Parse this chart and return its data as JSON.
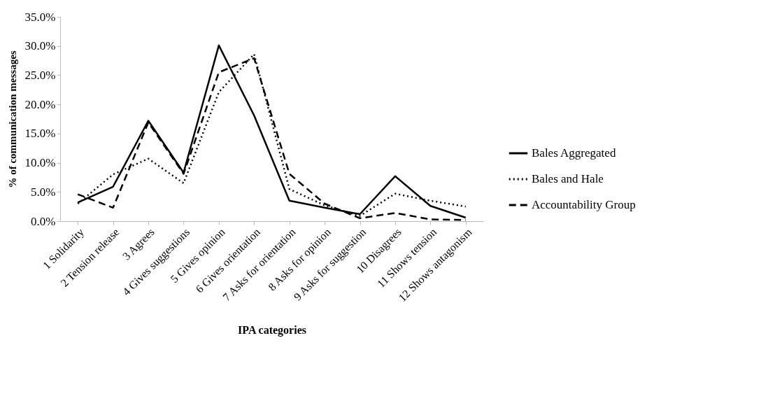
{
  "chart_data": {
    "type": "line",
    "xlabel": "IPA categories",
    "ylabel": "% of communication messages",
    "categories": [
      "1 Solidarity",
      "2 Tension release",
      "3 Agrees",
      "4 Gives suggestions",
      "5 Gives opinion",
      "6 Gives orientation",
      "7 Asks for orientation",
      "8 Asks for opinion",
      "9 Asks for suggestion",
      "10 Disagrees",
      "11 Shows tension",
      "12 Shows antagonism"
    ],
    "series": [
      {
        "name": "Bales Aggregated",
        "color": "#000000",
        "line_style": "solid",
        "values": [
          3.2,
          5.9,
          17.2,
          8.3,
          30.1,
          18.1,
          3.5,
          2.3,
          1.2,
          7.7,
          2.6,
          0.6
        ]
      },
      {
        "name": "Bales and Hale",
        "color": "#000000",
        "line_style": "dotted",
        "values": [
          3.0,
          8.0,
          10.7,
          6.5,
          22.1,
          28.6,
          5.5,
          2.7,
          0.9,
          4.7,
          3.5,
          2.5
        ]
      },
      {
        "name": "Accountability Group",
        "color": "#000000",
        "line_style": "dashed",
        "values": [
          4.6,
          2.3,
          16.9,
          8.1,
          25.5,
          27.9,
          8.1,
          3.0,
          0.5,
          1.4,
          0.3,
          0.2
        ]
      }
    ],
    "ylim": [
      0,
      35
    ],
    "yticks": [
      {
        "value": 0,
        "label": "0.0%"
      },
      {
        "value": 5,
        "label": "5.0%"
      },
      {
        "value": 10,
        "label": "10.0%"
      },
      {
        "value": 15,
        "label": "15.0%"
      },
      {
        "value": 20,
        "label": "20.0%"
      },
      {
        "value": 25,
        "label": "25.0%"
      },
      {
        "value": 30,
        "label": "30.0%"
      },
      {
        "value": 35,
        "label": "35.0%"
      }
    ],
    "grid": false,
    "legend": "right",
    "marker": "none"
  }
}
